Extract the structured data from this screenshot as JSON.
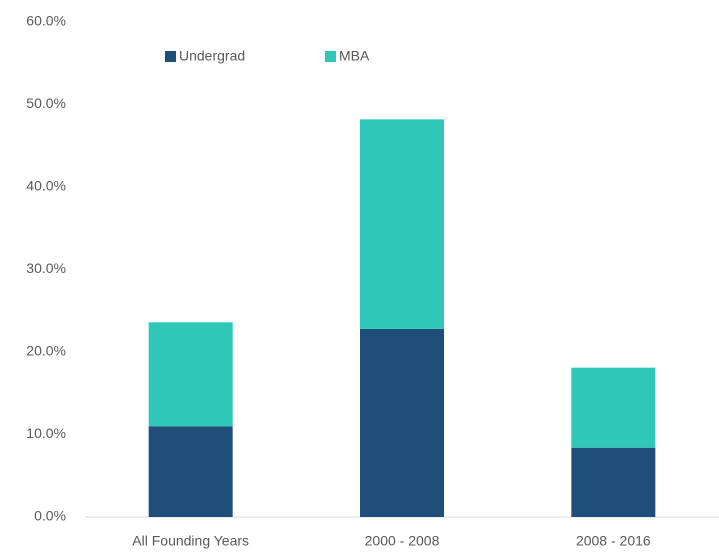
{
  "chart_data": {
    "type": "stacked_bar",
    "categories": [
      "All Founding Years",
      "2000 - 2008",
      "2008 - 2016"
    ],
    "series": [
      {
        "name": "Undergrad",
        "color": "#1f4e79",
        "values": [
          11.0,
          22.8,
          8.4
        ]
      },
      {
        "name": "MBA",
        "color": "#2ec7b8",
        "values": [
          12.6,
          25.4,
          9.7
        ]
      }
    ],
    "ylim": [
      0,
      60
    ],
    "yticks": [
      {
        "value": 0,
        "label": "0.0%"
      },
      {
        "value": 10,
        "label": "10.0%"
      },
      {
        "value": 20,
        "label": "20.0%"
      },
      {
        "value": 30,
        "label": "30.0%"
      },
      {
        "value": 40,
        "label": "40.0%"
      },
      {
        "value": 50,
        "label": "50.0%"
      },
      {
        "value": 60,
        "label": "60.0%"
      }
    ],
    "grid": false,
    "legend": "top"
  }
}
